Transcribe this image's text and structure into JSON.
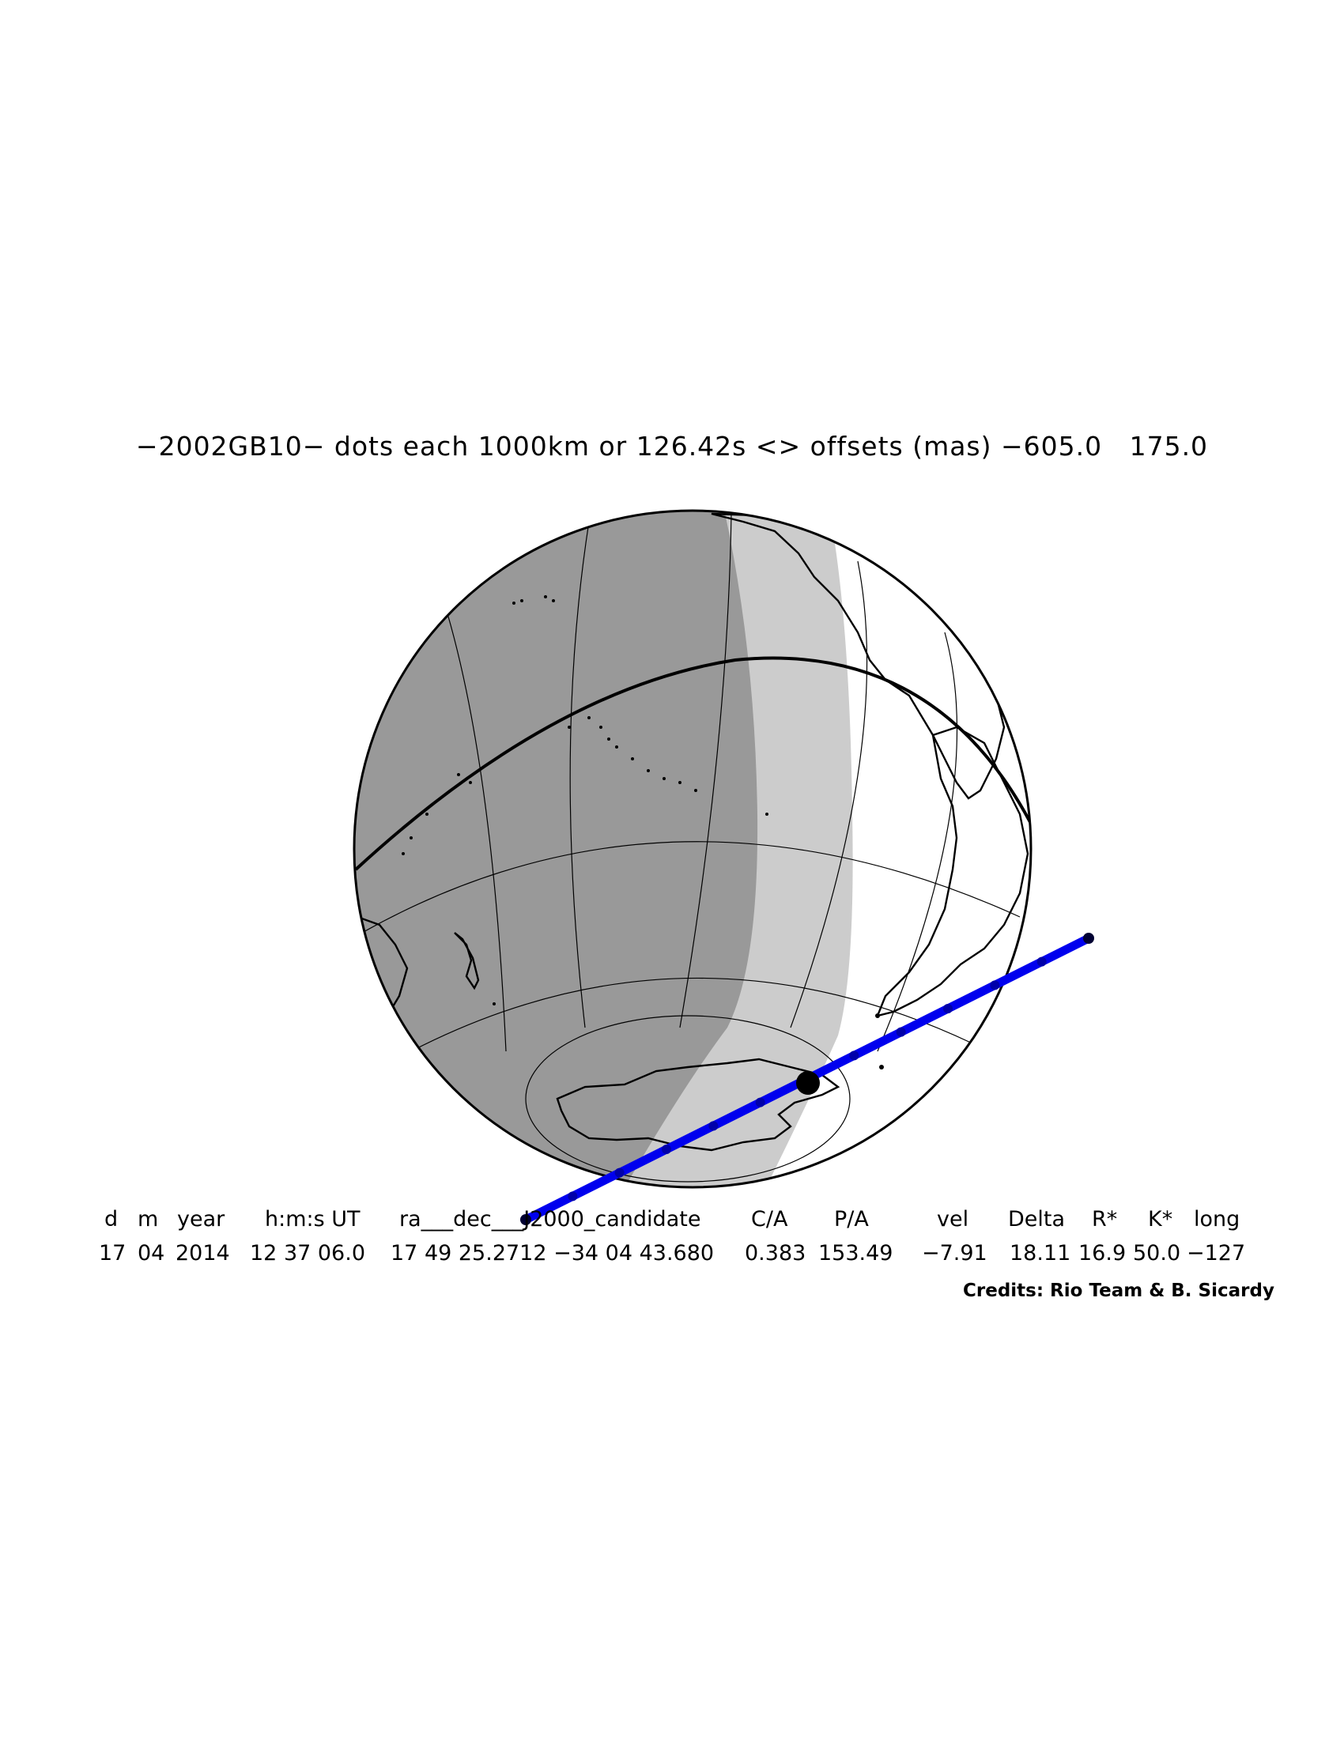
{
  "title": "−2002GB10− dots each 1000km or 126.42s <> offsets (mas) −605.0   175.0",
  "table": {
    "headers": [
      "d",
      "m",
      "year",
      "h:m:s UT",
      "ra___dec___J2000_candidate",
      "C/A",
      "P/A",
      "vel",
      "Delta",
      "R*",
      "K*",
      "long"
    ],
    "values": [
      "17",
      "04",
      "2014",
      "12 37 06.0",
      "17 49 25.2712 −34 04 43.680",
      "0.383",
      "153.49",
      "−7.91",
      "18.11",
      "16.9",
      "50.0",
      "−127"
    ]
  },
  "credits": "Credits: Rio Team & B. Sicardy",
  "colors": {
    "night": "#999999",
    "twilight": "#cccccc",
    "day": "#ffffff",
    "track": "#0000ee",
    "outline": "#000000"
  },
  "track": {
    "dots": 13,
    "dot_spacing_km": 1000,
    "dot_spacing_s": 126.42,
    "closest_approach_marker": true
  }
}
